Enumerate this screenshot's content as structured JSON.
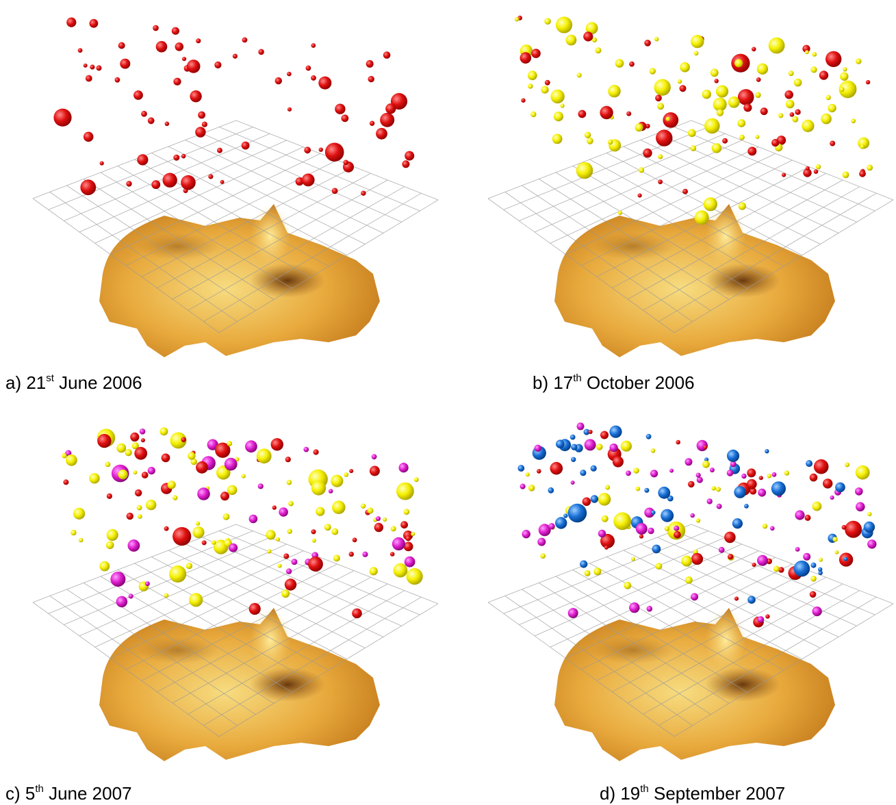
{
  "panels": [
    {
      "prefix": "a) 21",
      "sup": "st",
      "suffix": " June 2006"
    },
    {
      "prefix": "b) 17",
      "sup": "th",
      "suffix": " October 2006"
    },
    {
      "prefix": "c) 5",
      "sup": "th",
      "suffix": " June 2007"
    },
    {
      "prefix": "d) 19",
      "sup": "th",
      "suffix": " September 2007"
    }
  ]
}
